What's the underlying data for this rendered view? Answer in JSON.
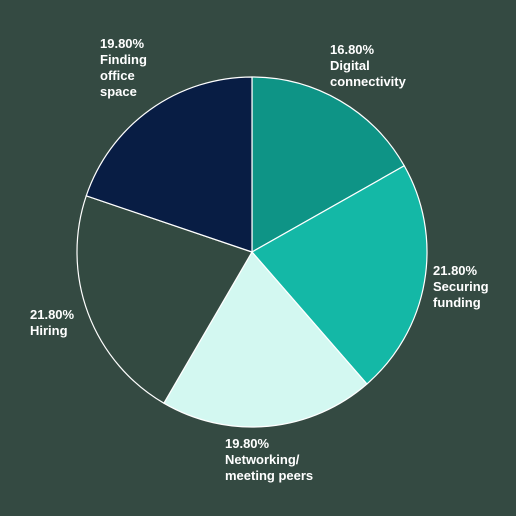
{
  "chart_data": {
    "type": "pie",
    "title": "",
    "start_angle_deg": 0,
    "direction": "clockwise",
    "background_color": "#344a42",
    "slice_border_color": "#ffffff",
    "legend": "none",
    "slices": [
      {
        "label": "Digital connectivity",
        "value": 16.8,
        "display": "16.80%",
        "color": "#0e9486"
      },
      {
        "label": "Securing funding",
        "value": 21.8,
        "display": "21.80%",
        "color": "#14b8a6"
      },
      {
        "label": "Networking/ meeting peers",
        "value": 19.8,
        "display": "19.80%",
        "color": "#d3f8f1"
      },
      {
        "label": "Hiring",
        "value": 21.8,
        "display": "21.80%",
        "color": "#334a41"
      },
      {
        "label": "Finding office space",
        "value": 19.8,
        "display": "19.80%",
        "color": "#081d44"
      }
    ]
  }
}
